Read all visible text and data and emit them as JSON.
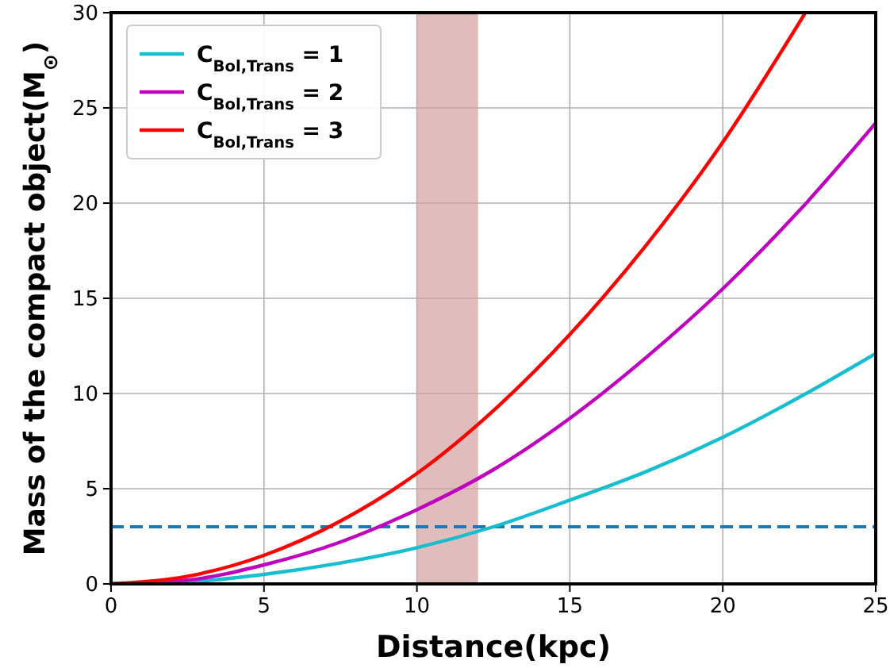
{
  "chart_data": {
    "type": "line",
    "xlabel": "Distance(kpc)",
    "ylabel": "Mass of the compact object(M$_{⊙}$)",
    "xlim": [
      0,
      25
    ],
    "ylim": [
      0,
      30
    ],
    "xticks": [
      0,
      5,
      10,
      15,
      20,
      25
    ],
    "yticks": [
      0,
      5,
      10,
      15,
      20,
      25,
      30
    ],
    "grid": true,
    "legend": "top left",
    "line_style": "solid",
    "marker": "none",
    "series": [
      {
        "name": "C$_{Bol,Trans}$ = 1",
        "color": "#17becf",
        "x": [
          0,
          2.5,
          5,
          7.5,
          10,
          12.5,
          15,
          17.5,
          20,
          22.5,
          25
        ],
        "values": [
          0,
          0.1,
          0.5,
          1.1,
          1.9,
          3,
          4.4,
          5.9,
          7.7,
          9.8,
          12.1
        ]
      },
      {
        "name": "C$_{Bol,Trans}$ = 2",
        "color": "#bf00bf",
        "x": [
          0,
          2.5,
          5,
          7.5,
          10,
          12.5,
          15,
          17.5,
          20,
          22.5,
          25
        ],
        "values": [
          0,
          0.2,
          1,
          2.2,
          3.9,
          6,
          8.7,
          11.9,
          15.5,
          19.6,
          24.2
        ]
      },
      {
        "name": "C$_{Bol,Trans}$ = 3",
        "color": "#ff0000",
        "x": [
          0,
          2.5,
          5,
          7.5,
          10,
          12.5,
          15,
          17.5,
          20,
          22.7
        ],
        "values": [
          0,
          0.4,
          1.5,
          3.3,
          5.8,
          9.1,
          13.1,
          17.8,
          23.2,
          30
        ]
      }
    ],
    "ref_lines": [
      {
        "axis": "y",
        "value": 3,
        "color": "#1f77b4",
        "line_style": "dashed"
      }
    ],
    "bands": [
      {
        "axis": "x",
        "from": 10,
        "to": 12,
        "color": "#d4a0a0"
      }
    ]
  }
}
